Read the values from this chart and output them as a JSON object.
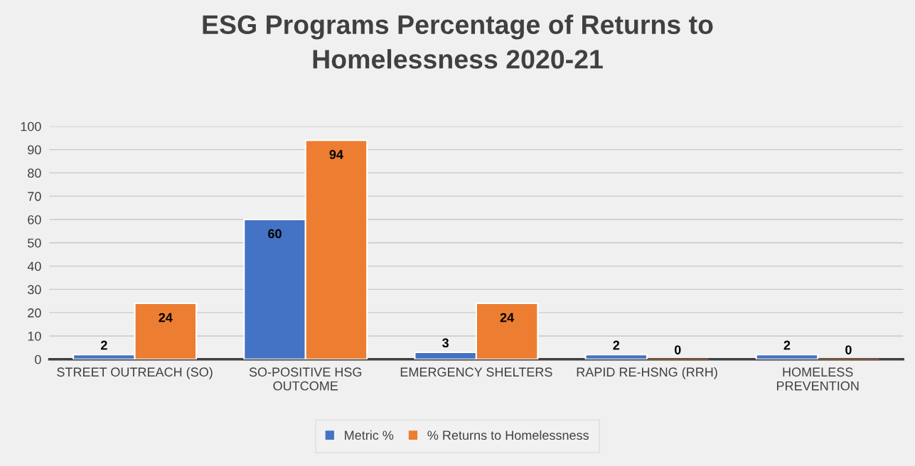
{
  "chart_data": {
    "type": "bar",
    "title": "ESG Programs Percentage of Returns to\nHomelessness 2020-21",
    "categories": [
      "STREET OUTREACH (SO)",
      "SO-POSITIVE HSG\nOUTCOME",
      "EMERGENCY SHELTERS",
      "RAPID RE-HSNG (RRH)",
      "HOMELESS\nPREVENTION"
    ],
    "series": [
      {
        "name": "Metric %",
        "color": "#4472c4",
        "values": [
          2,
          60,
          3,
          2,
          2
        ]
      },
      {
        "name": "% Returns to Homelessness",
        "color": "#ed7d31",
        "values": [
          24,
          94,
          24,
          0,
          0
        ]
      }
    ],
    "ylim": [
      0,
      100
    ],
    "yticks": [
      0,
      10,
      20,
      30,
      40,
      50,
      60,
      70,
      80,
      90,
      100
    ],
    "grid": "y",
    "legend": "bottom",
    "data_labels": true
  }
}
